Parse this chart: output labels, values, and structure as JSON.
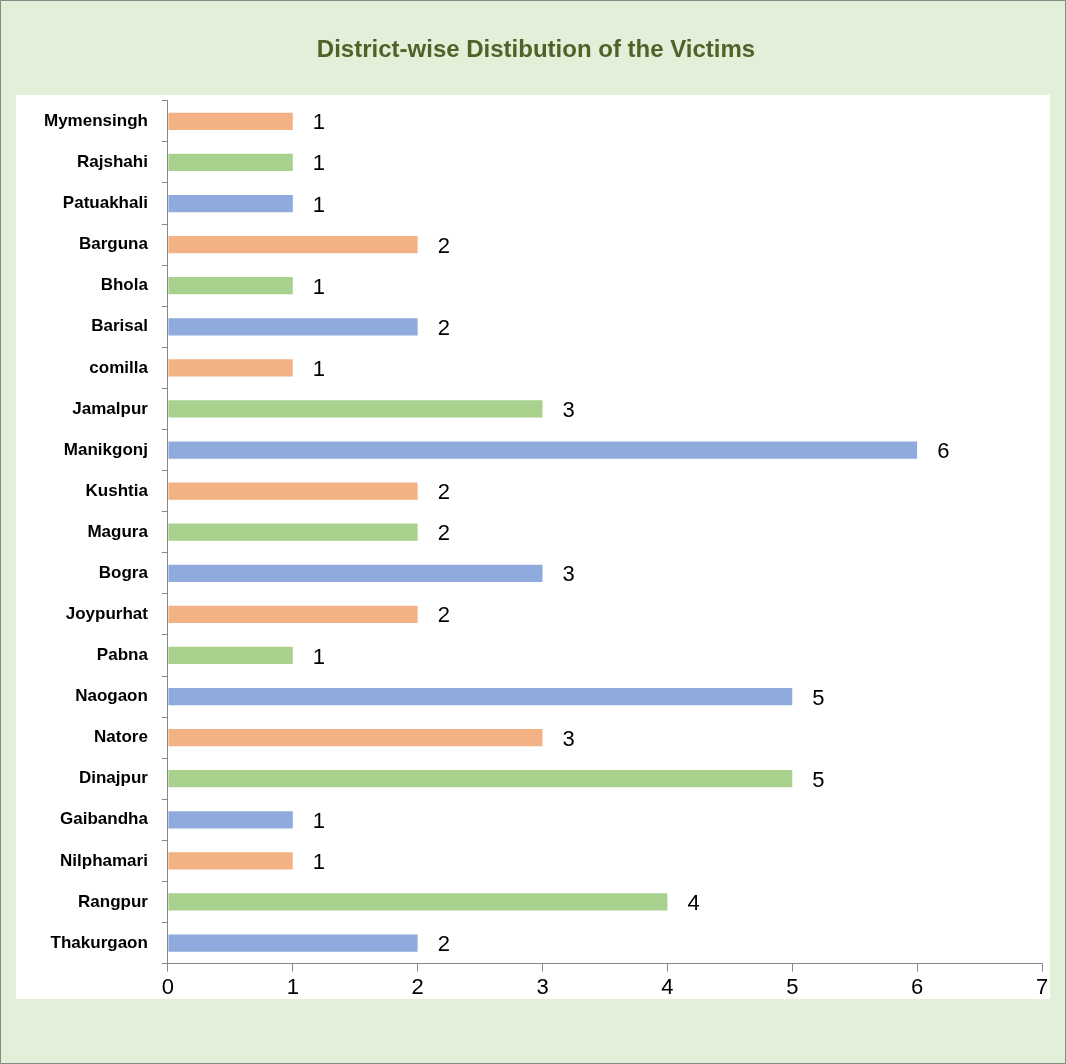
{
  "chart_data": {
    "type": "bar",
    "orientation": "horizontal",
    "title": "District-wise Distibution of the Victims",
    "categories": [
      "Mymensingh",
      "Rajshahi",
      "Patuakhali",
      "Barguna",
      "Bhola",
      "Barisal",
      "comilla",
      "Jamalpur",
      "Manikgonj",
      "Kushtia",
      "Magura",
      "Bogra",
      "Joypurhat",
      "Pabna",
      "Naogaon",
      "Natore",
      "Dinajpur",
      "Gaibandha",
      "Nilphamari",
      "Rangpur",
      "Thakurgaon"
    ],
    "values": [
      1,
      1,
      1,
      2,
      1,
      2,
      1,
      3,
      6,
      2,
      2,
      3,
      2,
      1,
      5,
      3,
      5,
      1,
      1,
      4,
      2
    ],
    "colors": [
      "#f4b183",
      "#a9d18e",
      "#8faadc",
      "#f4b183",
      "#a9d18e",
      "#8faadc",
      "#f4b183",
      "#a9d18e",
      "#8faadc",
      "#f4b183",
      "#a9d18e",
      "#8faadc",
      "#f4b183",
      "#a9d18e",
      "#8faadc",
      "#f4b183",
      "#a9d18e",
      "#8faadc",
      "#f4b183",
      "#a9d18e",
      "#8faadc"
    ],
    "xlim": [
      0,
      7
    ],
    "xticks": [
      0,
      1,
      2,
      3,
      4,
      5,
      6,
      7
    ],
    "data_labels": true,
    "grid": false,
    "legend": false
  }
}
